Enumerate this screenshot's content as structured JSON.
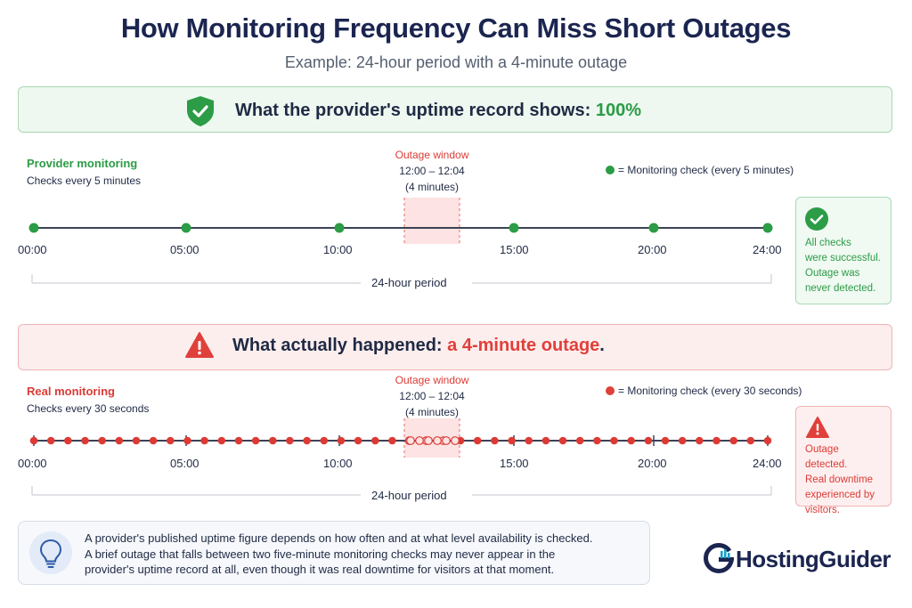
{
  "title": "How Monitoring Frequency Can Miss Short Outages",
  "subtitle": "Example: 24-hour period with a 4-minute outage",
  "colors": {
    "green": "#2c9c46",
    "red": "#dc3b35",
    "navy": "#1b2550"
  },
  "provider_banner": {
    "icon": "shield-check-icon",
    "text": "What the provider's uptime record shows:",
    "value": "100%"
  },
  "provider": {
    "title": "Provider monitoring",
    "subtitle": "Checks every 5 minutes",
    "legend": "= Monitoring check (every 5 minutes)",
    "outage_label": "Outage window",
    "outage_time": "12:00 – 12:04",
    "outage_duration": "(4 minutes)",
    "ticks": [
      "00:00",
      "05:00",
      "10:00",
      "15:00",
      "20:00",
      "24:00"
    ],
    "period": "24-hour period",
    "status_icon": "check-circle-icon",
    "status_lines": [
      "All checks",
      "were successful.",
      "Outage was",
      "never detected."
    ]
  },
  "real_banner": {
    "icon": "warning-triangle-icon",
    "text": "What actually happened:",
    "value": "a 4-minute outage",
    "suffix": "."
  },
  "real": {
    "title": "Real monitoring",
    "subtitle": "Checks every 30 seconds",
    "legend": "= Monitoring check (every 30 seconds)",
    "outage_label": "Outage window",
    "outage_time": "12:00 – 12:04",
    "outage_duration": "(4 minutes)",
    "ticks": [
      "00:00",
      "05:00",
      "10:00",
      "15:00",
      "20:00",
      "24:00"
    ],
    "period": "24-hour period",
    "status_icon": "warning-triangle-icon",
    "status_lines": [
      "Outage detected.",
      "Real downtime",
      "experienced by",
      "visitors."
    ]
  },
  "note": {
    "icon": "lightbulb-icon",
    "lines": [
      "A provider's published uptime figure depends on how often and at what level availability is checked.",
      "A brief outage that falls between two five-minute monitoring checks may never appear in the",
      "provider's uptime record at all, even though it was real downtime for visitors at that moment."
    ]
  },
  "brand": {
    "logo_icon": "hostingguider-logo-icon",
    "name": "HostingGuider"
  }
}
